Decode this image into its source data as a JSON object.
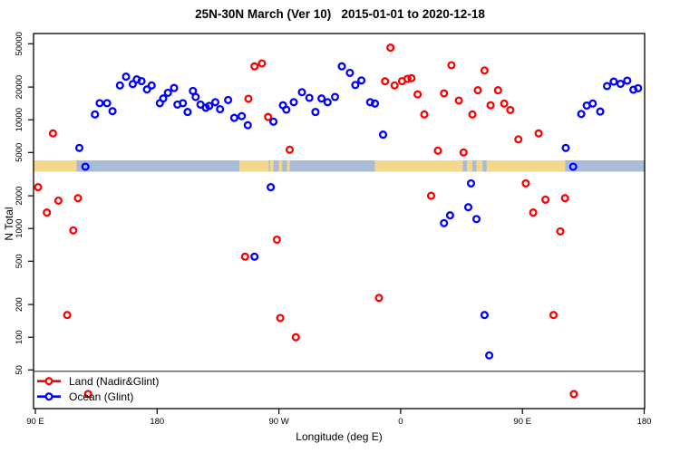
{
  "header": {
    "title": "25N-30N March (Ver 10)   2015-01-01 to 2020-12-18"
  },
  "chart_data": {
    "type": "scatter",
    "title": "25N-30N March (Ver 10)   2015-01-01 to 2020-12-18",
    "xlabel": "Longitude (deg E)",
    "ylabel": "N Total",
    "x_axis": {
      "ticks": [
        90,
        180,
        270,
        360,
        450,
        540
      ],
      "tick_labels": [
        "90 E",
        "180",
        "90 W",
        "0",
        "90 E",
        "180"
      ],
      "range_deg_east_continuous": [
        88.7,
        540.3
      ],
      "grid": false
    },
    "y_axis": {
      "scale": "log",
      "ticks": [
        50,
        100,
        200,
        500,
        1000,
        2000,
        5000,
        10000,
        20000,
        50000
      ],
      "tick_labels": [
        "50",
        "100",
        "200",
        "500",
        "1000",
        "2000",
        "5000",
        "10000",
        "20000",
        "50000"
      ],
      "range": [
        22,
        62000
      ],
      "grid": false
    },
    "threshold_line": {
      "value": 50,
      "color": "#333333"
    },
    "land_ocean_band": {
      "value_top": 4230,
      "value_bottom": 3330,
      "land_color": "#F5D88C",
      "ocean_color": "#A8BCD8",
      "segments": [
        {
          "surface": "land",
          "from": 88.7,
          "to": 120.5
        },
        {
          "surface": "ocean",
          "from": 120.5,
          "to": 241.0
        },
        {
          "surface": "land",
          "from": 241.0,
          "to": 262.5
        },
        {
          "surface": "ocean",
          "from": 262.5,
          "to": 341.0
        },
        {
          "surface": "land",
          "from": 341.0,
          "to": 481.5
        },
        {
          "surface": "ocean",
          "from": 481.5,
          "to": 540.3
        }
      ],
      "patches": [
        {
          "surface": "land",
          "from": 263.5,
          "to": 266.0
        },
        {
          "surface": "land",
          "from": 270.0,
          "to": 272.5
        },
        {
          "surface": "land",
          "from": 276.0,
          "to": 278.0
        },
        {
          "surface": "ocean",
          "from": 406.0,
          "to": 409.0
        },
        {
          "surface": "ocean",
          "from": 413.0,
          "to": 416.0
        },
        {
          "surface": "ocean",
          "from": 420.5,
          "to": 423.5
        }
      ]
    },
    "series": [
      {
        "name": "Land (Nadir&Glint)",
        "color": "#FF0000",
        "points": [
          [
            92,
            2400
          ],
          [
            98.5,
            1400
          ],
          [
            103,
            7500
          ],
          [
            107,
            1800
          ],
          [
            113.5,
            160
          ],
          [
            118,
            960
          ],
          [
            121.5,
            1900
          ],
          [
            129,
            30
          ],
          [
            245,
            550
          ],
          [
            247.5,
            15600
          ],
          [
            252,
            31000
          ],
          [
            257.5,
            33000
          ],
          [
            262,
            10600
          ],
          [
            268.5,
            790
          ],
          [
            271,
            150
          ],
          [
            278,
            5300
          ],
          [
            282.5,
            100
          ],
          [
            344,
            230
          ],
          [
            348.5,
            22600
          ],
          [
            352.5,
            46000
          ],
          [
            355.5,
            20700
          ],
          [
            361,
            22700
          ],
          [
            365,
            23800
          ],
          [
            368,
            24100
          ],
          [
            372.5,
            17100
          ],
          [
            377.5,
            11200
          ],
          [
            382.5,
            2000
          ],
          [
            387.5,
            5200
          ],
          [
            392,
            17500
          ],
          [
            397.5,
            31700
          ],
          [
            403,
            15000
          ],
          [
            406.5,
            5000
          ],
          [
            413,
            11200
          ],
          [
            417,
            18700
          ],
          [
            422,
            28400
          ],
          [
            426.5,
            13600
          ],
          [
            432,
            18700
          ],
          [
            436.5,
            14100
          ],
          [
            441,
            12300
          ],
          [
            447,
            6600
          ],
          [
            452.5,
            2600
          ],
          [
            458,
            1400
          ],
          [
            462,
            7500
          ],
          [
            467,
            1840
          ],
          [
            473,
            160
          ],
          [
            478,
            940
          ],
          [
            481.5,
            1900
          ],
          [
            488,
            30
          ]
        ]
      },
      {
        "name": "Ocean (Glint)",
        "color": "#0000FF",
        "points": [
          [
            122.5,
            5500
          ],
          [
            127,
            3700
          ],
          [
            134,
            11200
          ],
          [
            137.5,
            14200
          ],
          [
            143,
            14200
          ],
          [
            147,
            12000
          ],
          [
            152.5,
            20700
          ],
          [
            157,
            24900
          ],
          [
            162,
            21300
          ],
          [
            165,
            23500
          ],
          [
            168.5,
            22700
          ],
          [
            172.5,
            19000
          ],
          [
            176,
            20700
          ],
          [
            182,
            14200
          ],
          [
            184.5,
            15700
          ],
          [
            188,
            17700
          ],
          [
            192.5,
            19600
          ],
          [
            195,
            13800
          ],
          [
            199,
            14200
          ],
          [
            202.5,
            11800
          ],
          [
            206.5,
            18400
          ],
          [
            208.5,
            16200
          ],
          [
            212,
            13800
          ],
          [
            216,
            12900
          ],
          [
            218.5,
            13400
          ],
          [
            223,
            14500
          ],
          [
            226.5,
            12500
          ],
          [
            232.5,
            15200
          ],
          [
            237,
            10400
          ],
          [
            242.5,
            10800
          ],
          [
            247,
            8900
          ],
          [
            252,
            550
          ],
          [
            264,
            2400
          ],
          [
            266,
            9600
          ],
          [
            273,
            13600
          ],
          [
            275.5,
            12400
          ],
          [
            281,
            14500
          ],
          [
            287,
            17900
          ],
          [
            292.5,
            15900
          ],
          [
            297,
            11800
          ],
          [
            301.5,
            15700
          ],
          [
            306,
            14500
          ],
          [
            311.5,
            16200
          ],
          [
            316.5,
            31000
          ],
          [
            322.5,
            27000
          ],
          [
            326.5,
            20900
          ],
          [
            331,
            23000
          ],
          [
            337.5,
            14500
          ],
          [
            341,
            14100
          ],
          [
            347,
            7300
          ],
          [
            392,
            1120
          ],
          [
            396.5,
            1320
          ],
          [
            410,
            1570
          ],
          [
            412,
            2600
          ],
          [
            416,
            1220
          ],
          [
            422,
            160
          ],
          [
            425.5,
            68
          ],
          [
            482,
            5500
          ],
          [
            487.5,
            3700
          ],
          [
            493.5,
            11300
          ],
          [
            497.5,
            13500
          ],
          [
            502,
            14100
          ],
          [
            507.5,
            11900
          ],
          [
            512.5,
            20400
          ],
          [
            517.5,
            22400
          ],
          [
            522.5,
            21400
          ],
          [
            527.5,
            22900
          ],
          [
            532,
            18900
          ],
          [
            535.5,
            19500
          ]
        ]
      }
    ],
    "legend": {
      "position": "bottom-left",
      "entries": [
        "Land (Nadir&Glint)",
        "Ocean (Glint)"
      ]
    }
  }
}
